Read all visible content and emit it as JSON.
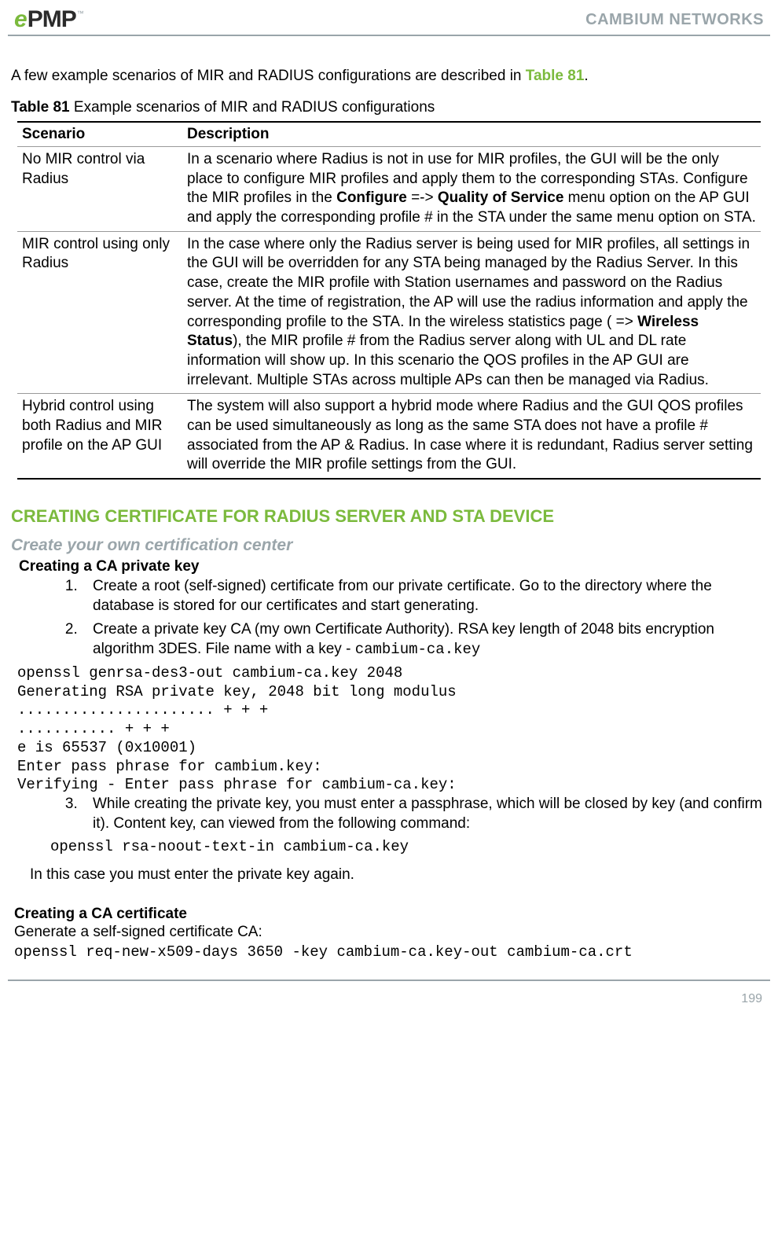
{
  "header": {
    "logo_e": "e",
    "logo_pmp": "PMP",
    "logo_tm": "™",
    "brand": "CAMBIUM NETWORKS"
  },
  "intro": {
    "text_before": "A few example scenarios of MIR and RADIUS configurations are described in ",
    "link": "Table 81",
    "text_after": "."
  },
  "table": {
    "caption_label": "Table 81",
    "caption_text": "  Example scenarios of MIR and RADIUS configurations",
    "headers": {
      "scenario": "Scenario",
      "description": "Description"
    },
    "rows": [
      {
        "scenario": "No MIR control via Radius",
        "desc_pre": "In a scenario where Radius is not in use for MIR profiles, the GUI will be the only place to configure MIR profiles and apply them to the corresponding STAs. Configure the MIR profiles in the ",
        "bold1": "Configure",
        "mid1": " =-> ",
        "bold2": "Quality of Service",
        "desc_post": " menu option on the AP GUI and apply the corresponding profile # in the STA under the same menu option on STA."
      },
      {
        "scenario": "MIR control using only Radius",
        "desc_pre": "In the case where only the Radius server is being used for MIR profiles, all settings in the GUI will be overridden for any STA being managed by the Radius Server. In this case, create the MIR profile with Station usernames and password on the Radius server. At the time of registration, the AP will use the radius information and apply the corresponding profile to the STA. In the wireless statistics page ( => ",
        "bold1": "Wireless Status",
        "desc_post": "), the MIR profile # from the Radius server along with UL and DL rate information will show up. In this scenario the QOS profiles in the AP GUI are irrelevant. Multiple STAs across multiple APs can then be managed via Radius."
      },
      {
        "scenario": "Hybrid control using both Radius and MIR profile on the AP GUI",
        "desc_pre": "The system will also support a hybrid mode where Radius and the GUI QOS profiles can be used simultaneously as long as the same STA does not have a profile # associated from the AP & Radius. In case where it is redundant, Radius server setting will override the MIR profile settings from the GUI."
      }
    ]
  },
  "section_heading": "CREATING CERTIFICATE FOR RADIUS SERVER AND STA DEVICE",
  "subsection_heading": "Create your own certification center",
  "priv_key_heading": "Creating a CA private key",
  "steps_a": [
    "Create a root (self-signed) certificate from our private certificate. Go to the directory where the database is stored for our certificates and start generating."
  ],
  "step2_pre": "Create a private key CA (my own Certificate Authority). RSA key length of 2048 bits encryption algorithm 3DES. File name with a key - ",
  "step2_code": "cambium-ca.key",
  "code_block": "openssl genrsa-des3-out cambium-ca.key 2048\nGenerating RSA private key, 2048 bit long modulus\n...................... + + +\n........... + + +\ne is 65537 (0x10001)\nEnter pass phrase for cambium.key:\nVerifying - Enter pass phrase for cambium-ca.key:",
  "step3": "While creating the private key, you must enter a passphrase, which will be closed by key (and confirm it). Content key, can viewed from the following command:",
  "step3_cmd": "openssl rsa-noout-text-in cambium-ca.key",
  "note": "In this case you must enter the private key again.",
  "cert_heading": "Creating a CA certificate",
  "cert_text": "Generate a self-signed certificate CA:",
  "cert_cmd": "openssl req-new-x509-days 3650 -key cambium-ca.key-out cambium-ca.crt",
  "page_number": "199"
}
